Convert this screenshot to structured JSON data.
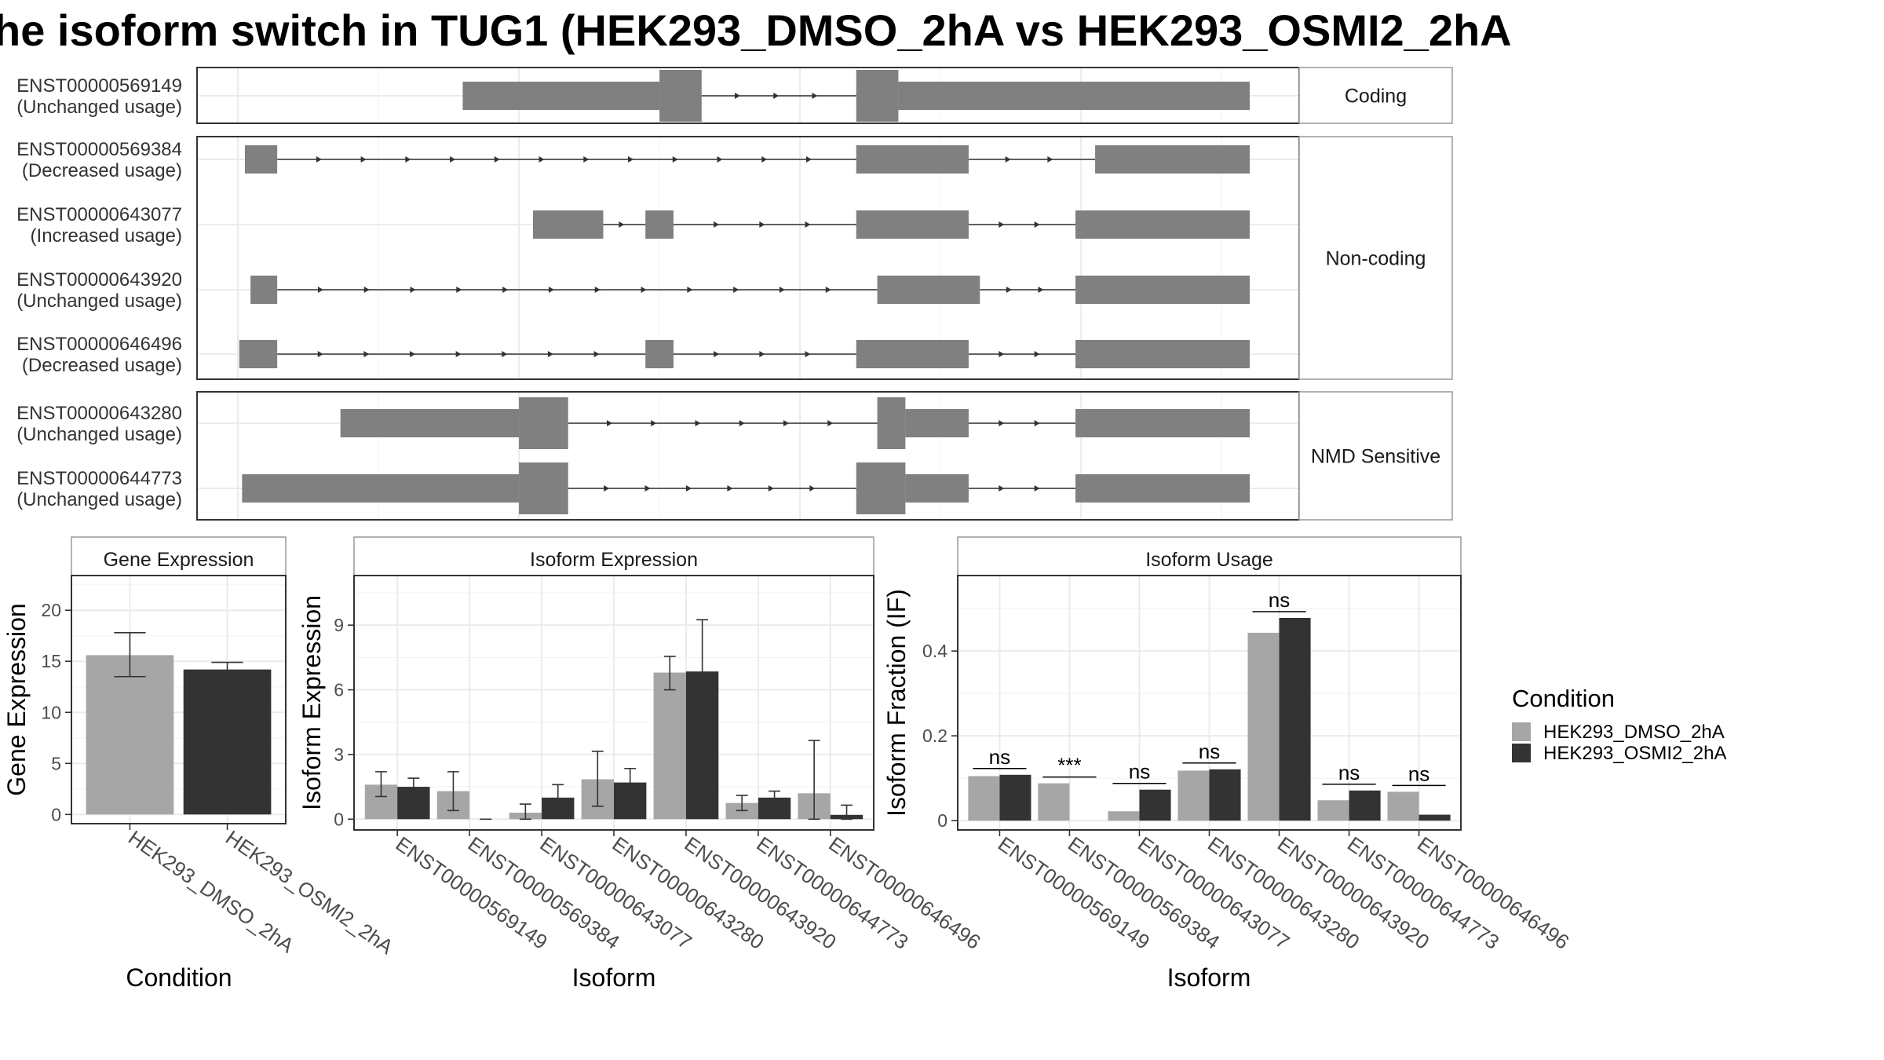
{
  "title": "he isoform switch in TUG1 (HEK293_DMSO_2hA vs HEK293_OSMI2_2hA",
  "colors": {
    "condition_1": "#a6a6a6",
    "condition_2": "#333333",
    "exon": "#808080"
  },
  "chart_data": [
    {
      "type": "structure",
      "panels": [
        {
          "strip": "Coding",
          "isoforms": [
            {
              "id": "ENST00000569149",
              "label": "(Unchanged usage)",
              "exons": [
                [
                  16,
                  30,
                  "t"
                ],
                [
                  30,
                  33,
                  "c"
                ],
                [
                  44,
                  47,
                  "c"
                ],
                [
                  47,
                  72,
                  "t"
                ]
              ]
            }
          ]
        },
        {
          "strip": "Non-coding",
          "isoforms": [
            {
              "id": "ENST00000569384",
              "label": "(Decreased usage)",
              "exons": [
                [
                  0.5,
                  2.8,
                  "t"
                ],
                [
                  44,
                  52,
                  "t"
                ],
                [
                  61,
                  72,
                  "t"
                ]
              ]
            },
            {
              "id": "ENST00000643077",
              "label": "(Increased usage)",
              "exons": [
                [
                  21,
                  26,
                  "t"
                ],
                [
                  29,
                  31,
                  "t"
                ],
                [
                  44,
                  52,
                  "t"
                ],
                [
                  59.6,
                  72,
                  "t"
                ]
              ]
            },
            {
              "id": "ENST00000643920",
              "label": "(Unchanged usage)",
              "exons": [
                [
                  0.9,
                  2.8,
                  "t"
                ],
                [
                  45.5,
                  52.8,
                  "t"
                ],
                [
                  59.6,
                  72,
                  "t"
                ]
              ]
            },
            {
              "id": "ENST00000646496",
              "label": "(Decreased usage)",
              "exons": [
                [
                  0.1,
                  2.8,
                  "t"
                ],
                [
                  29,
                  31,
                  "t"
                ],
                [
                  44,
                  52,
                  "t"
                ],
                [
                  59.6,
                  72,
                  "t"
                ]
              ]
            }
          ]
        },
        {
          "strip": "NMD Sensitive",
          "isoforms": [
            {
              "id": "ENST00000643280",
              "label": "(Unchanged usage)",
              "exons": [
                [
                  7.3,
                  20,
                  "t"
                ],
                [
                  20,
                  23.5,
                  "c"
                ],
                [
                  45.5,
                  47.5,
                  "c"
                ],
                [
                  47.5,
                  52,
                  "t"
                ],
                [
                  59.6,
                  72,
                  "t"
                ]
              ]
            },
            {
              "id": "ENST00000644773",
              "label": "(Unchanged usage)",
              "exons": [
                [
                  0.3,
                  20,
                  "t"
                ],
                [
                  20,
                  23.5,
                  "c"
                ],
                [
                  44,
                  47.5,
                  "c"
                ],
                [
                  47.5,
                  52,
                  "t"
                ],
                [
                  59.6,
                  72,
                  "t"
                ]
              ]
            }
          ]
        }
      ]
    },
    {
      "type": "bar",
      "title": "Gene Expression",
      "xlabel": "Condition",
      "ylabel": "Gene Expression",
      "categories": [
        "HEK293_DMSO_2hA",
        "HEK293_OSMI2_2hA"
      ],
      "values": [
        15.6,
        14.2
      ],
      "error_low": [
        13.5,
        13.6
      ],
      "error_high": [
        17.8,
        14.9
      ],
      "yticks": [
        0,
        5,
        10,
        15,
        20
      ],
      "ylim": [
        -0.9,
        23.4
      ]
    },
    {
      "type": "bar",
      "title": "Isoform Expression",
      "xlabel": "Isoform",
      "ylabel": "Isoform Expression",
      "categories": [
        "ENST00000569149",
        "ENST00000569384",
        "ENST00000643077",
        "ENST00000643280",
        "ENST00000643920",
        "ENST00000644773",
        "ENST00000646496"
      ],
      "series": [
        {
          "name": "HEK293_DMSO_2hA",
          "values": [
            1.6,
            1.3,
            0.3,
            1.85,
            6.8,
            0.75,
            1.2
          ],
          "error_low": [
            1.05,
            0.4,
            0.0,
            0.6,
            6.0,
            0.4,
            0.0
          ],
          "error_high": [
            2.2,
            2.2,
            0.7,
            3.15,
            7.55,
            1.1,
            3.65
          ]
        },
        {
          "name": "HEK293_OSMI2_2hA",
          "values": [
            1.5,
            0.0,
            1.0,
            1.7,
            6.85,
            1.0,
            0.2
          ],
          "error_low": [
            1.1,
            0.0,
            0.4,
            1.05,
            4.5,
            0.7,
            0.0
          ],
          "error_high": [
            1.9,
            0.0,
            1.6,
            2.35,
            9.25,
            1.3,
            0.65
          ]
        }
      ],
      "yticks": [
        0,
        3,
        6,
        9
      ],
      "ylim": [
        -0.5,
        11.3
      ]
    },
    {
      "type": "bar",
      "title": "Isoform Usage",
      "xlabel": "Isoform",
      "ylabel": "Isoform Fraction (IF)",
      "categories": [
        "ENST00000569149",
        "ENST00000569384",
        "ENST00000643077",
        "ENST00000643280",
        "ENST00000643920",
        "ENST00000644773",
        "ENST00000646496"
      ],
      "series": [
        {
          "name": "HEK293_DMSO_2hA",
          "values": [
            0.105,
            0.088,
            0.022,
            0.118,
            0.443,
            0.048,
            0.068
          ]
        },
        {
          "name": "HEK293_OSMI2_2hA",
          "values": [
            0.108,
            0.0,
            0.073,
            0.121,
            0.478,
            0.071,
            0.014
          ]
        }
      ],
      "significance": [
        "ns",
        "***",
        "ns",
        "ns",
        "ns",
        "ns",
        "ns"
      ],
      "yticks": [
        0.0,
        0.2,
        0.4
      ],
      "ylim": [
        -0.022,
        0.578
      ]
    }
  ],
  "legend": {
    "title": "Condition",
    "items": [
      "HEK293_DMSO_2hA",
      "HEK293_OSMI2_2hA"
    ]
  }
}
